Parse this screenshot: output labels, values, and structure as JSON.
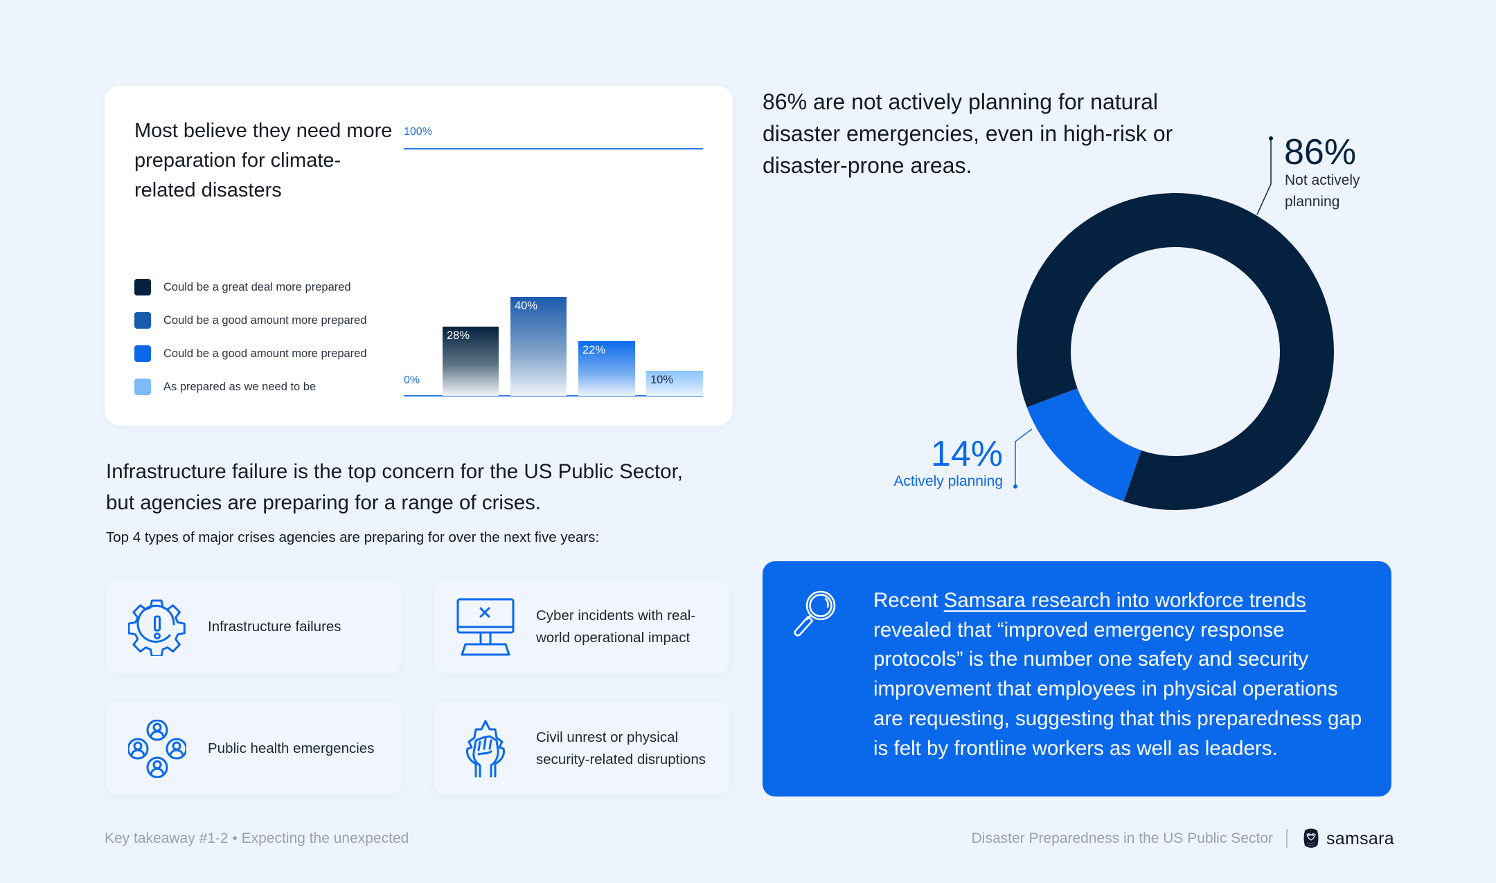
{
  "bar_card": {
    "title": "Most believe they need more preparation for climate-related disasters",
    "y_top_label": "100%",
    "y_bottom_label": "0%",
    "legend": [
      {
        "label": "Could be a great deal more prepared",
        "color": "#04213f"
      },
      {
        "label": "Could be a good amount more prepared",
        "color": "#1b5bad"
      },
      {
        "label": "Could be a good amount more prepared",
        "color": "#0a69ea"
      },
      {
        "label": "As prepared as we need to be",
        "color": "#7dbaf8"
      }
    ],
    "bars": [
      {
        "label": "28%",
        "value": 28
      },
      {
        "label": "40%",
        "value": 40
      },
      {
        "label": "22%",
        "value": 22
      },
      {
        "label": "10%",
        "value": 10
      }
    ]
  },
  "donut": {
    "headline": "86% are not actively planning for natural disaster emergencies, even in high-risk or disaster-prone areas.",
    "not_planning": {
      "pct": "86%",
      "label": "Not actively planning",
      "color": "#04213f"
    },
    "planning": {
      "pct": "14%",
      "label": "Actively planning",
      "color": "#0a69ea"
    }
  },
  "crises": {
    "title": "Infrastructure failure is the top concern for the US Public Sector, but agencies are preparing for a range of crises.",
    "subtitle": "Top 4 types of major crises agencies are preparing for over the next five years:",
    "items": [
      {
        "label": "Infrastructure failures",
        "icon": "gear-alert-icon"
      },
      {
        "label": "Cyber incidents with real-world operational impact",
        "icon": "computer-x-icon"
      },
      {
        "label": "Public health emergencies",
        "icon": "people-group-icon"
      },
      {
        "label": "Civil unrest or physical security-related disruptions",
        "icon": "raised-fist-icon"
      }
    ]
  },
  "callout": {
    "prefix": "Recent ",
    "link_text": "Samsara research into workforce trends",
    "suffix": " revealed that “improved emergency response protocols” is the number one safety and security improvement that employees in physical operations are requesting, suggesting that this preparedness gap is felt by frontline workers as well as leaders."
  },
  "footer": {
    "left": "Key takeaway #1-2 • Expecting the unexpected",
    "right": "Disaster Preparedness in the US Public Sector",
    "brand": "samsara"
  },
  "chart_data": [
    {
      "type": "bar",
      "title": "Most believe they need more preparation for climate-related disasters",
      "categories": [
        "Could be a great deal more prepared",
        "Could be a good amount more prepared",
        "Could be a good amount more prepared",
        "As prepared as we need to be"
      ],
      "values": [
        28,
        40,
        22,
        10
      ],
      "xlabel": "",
      "ylabel": "",
      "ylim": [
        0,
        100
      ],
      "tick_labels": [
        "0%",
        "100%"
      ],
      "legend_position": "left",
      "grid": false
    },
    {
      "type": "pie",
      "subtype": "donut",
      "title": "86% are not actively planning for natural disaster emergencies, even in high-risk or disaster-prone areas.",
      "categories": [
        "Not actively planning",
        "Actively planning"
      ],
      "values": [
        86,
        14
      ]
    }
  ]
}
